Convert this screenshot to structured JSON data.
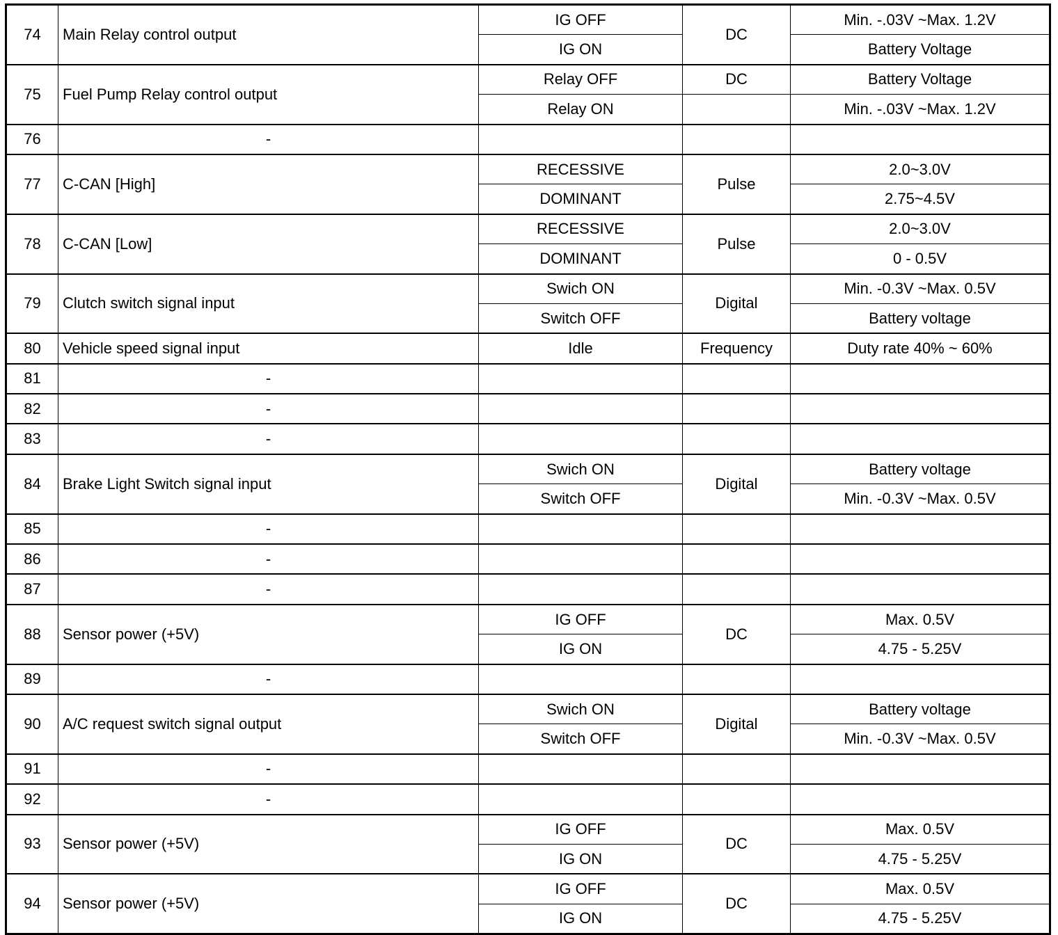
{
  "pins": [
    {
      "num": "74",
      "desc": "Main Relay control output",
      "conditions": [
        "IG OFF",
        "IG ON"
      ],
      "type": "DC",
      "levels": [
        "Min. -.03V ~Max. 1.2V",
        "Battery Voltage"
      ]
    },
    {
      "num": "75",
      "desc": "Fuel Pump Relay control output",
      "conditions": [
        "Relay OFF",
        "Relay ON"
      ],
      "types": [
        "DC",
        ""
      ],
      "levels": [
        "Battery Voltage",
        "Min. -.03V ~Max. 1.2V"
      ]
    },
    {
      "num": "76",
      "desc": "-",
      "conditions": [
        ""
      ],
      "type": "",
      "levels": [
        ""
      ]
    },
    {
      "num": "77",
      "desc": "C-CAN [High]",
      "conditions": [
        "RECESSIVE",
        "DOMINANT"
      ],
      "type": "Pulse",
      "levels": [
        "2.0~3.0V",
        "2.75~4.5V"
      ]
    },
    {
      "num": "78",
      "desc": "C-CAN [Low]",
      "conditions": [
        "RECESSIVE",
        "DOMINANT"
      ],
      "type": "Pulse",
      "levels": [
        "2.0~3.0V",
        "0 - 0.5V"
      ]
    },
    {
      "num": "79",
      "desc": "Clutch switch signal input",
      "conditions": [
        "Swich ON",
        "Switch OFF"
      ],
      "type": "Digital",
      "levels": [
        "Min. -0.3V ~Max. 0.5V",
        "Battery voltage"
      ]
    },
    {
      "num": "80",
      "desc": "Vehicle speed signal input",
      "conditions": [
        "Idle"
      ],
      "type": "Frequency",
      "levels": [
        "Duty rate 40% ~ 60%"
      ]
    },
    {
      "num": "81",
      "desc": "-",
      "conditions": [
        ""
      ],
      "type": "",
      "levels": [
        ""
      ]
    },
    {
      "num": "82",
      "desc": "-",
      "conditions": [
        ""
      ],
      "type": "",
      "levels": [
        ""
      ]
    },
    {
      "num": "83",
      "desc": "-",
      "conditions": [
        ""
      ],
      "type": "",
      "levels": [
        ""
      ]
    },
    {
      "num": "84",
      "desc": "Brake Light Switch signal input",
      "conditions": [
        "Swich ON",
        "Switch OFF"
      ],
      "type": "Digital",
      "levels": [
        "Battery voltage",
        "Min. -0.3V ~Max. 0.5V"
      ]
    },
    {
      "num": "85",
      "desc": "-",
      "conditions": [
        ""
      ],
      "type": "",
      "levels": [
        ""
      ]
    },
    {
      "num": "86",
      "desc": "-",
      "conditions": [
        ""
      ],
      "type": "",
      "levels": [
        ""
      ]
    },
    {
      "num": "87",
      "desc": "-",
      "conditions": [
        ""
      ],
      "type": "",
      "levels": [
        ""
      ]
    },
    {
      "num": "88",
      "desc": "Sensor power (+5V)",
      "conditions": [
        "IG OFF",
        "IG ON"
      ],
      "type": "DC",
      "levels": [
        "Max. 0.5V",
        "4.75 - 5.25V"
      ]
    },
    {
      "num": "89",
      "desc": "-",
      "conditions": [
        ""
      ],
      "type": "",
      "levels": [
        ""
      ]
    },
    {
      "num": "90",
      "desc": "A/C request switch signal output",
      "conditions": [
        "Swich ON",
        "Switch OFF"
      ],
      "type": "Digital",
      "levels": [
        "Battery voltage",
        "Min. -0.3V ~Max. 0.5V"
      ]
    },
    {
      "num": "91",
      "desc": "-",
      "conditions": [
        ""
      ],
      "type": "",
      "levels": [
        ""
      ]
    },
    {
      "num": "92",
      "desc": "-",
      "conditions": [
        ""
      ],
      "type": "",
      "levels": [
        ""
      ]
    },
    {
      "num": "93",
      "desc": "Sensor power (+5V)",
      "conditions": [
        "IG OFF",
        "IG ON"
      ],
      "type": "DC",
      "levels": [
        "Max. 0.5V",
        "4.75 - 5.25V"
      ]
    },
    {
      "num": "94",
      "desc": "Sensor power (+5V)",
      "conditions": [
        "IG OFF",
        "IG ON"
      ],
      "type": "DC",
      "levels": [
        "Max. 0.5V",
        "4.75 - 5.25V"
      ]
    }
  ]
}
